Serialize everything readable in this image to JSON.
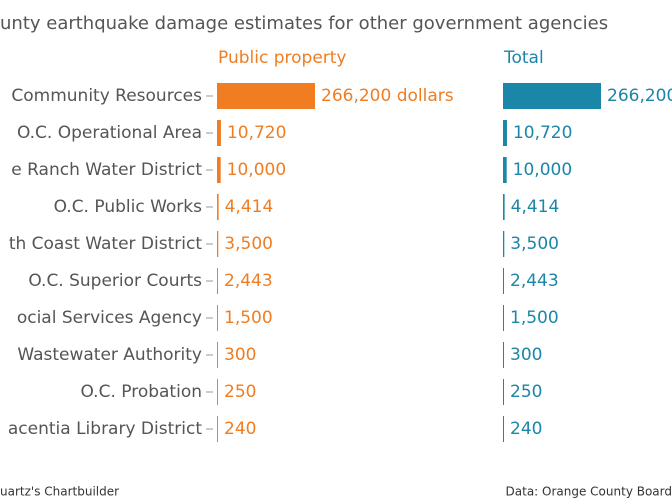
{
  "chart_data": {
    "type": "bar",
    "orientation": "horizontal",
    "title": "unty earthquake damage estimates for other government agencies",
    "categories": [
      "Community Resources",
      "O.C. Operational Area",
      "e Ranch Water District",
      "O.C. Public Works",
      "th Coast Water District",
      "O.C. Superior Courts",
      "ocial Services Agency",
      "Wastewater Authority",
      "O.C. Probation",
      "acentia Library District"
    ],
    "series": [
      {
        "name": "Public property",
        "color": "#f07d22",
        "values": [
          266200,
          10720,
          10000,
          4414,
          3500,
          2443,
          1500,
          300,
          250,
          240
        ],
        "value_labels": [
          "266,200 dollars",
          "10,720",
          "10,000",
          "4,414",
          "3,500",
          "2,443",
          "1,500",
          "300",
          "250",
          "240"
        ]
      },
      {
        "name": "Total",
        "color": "#1a86a8",
        "values": [
          266200,
          10720,
          10000,
          4414,
          3500,
          2443,
          1500,
          300,
          250,
          240
        ],
        "value_labels": [
          "266,200",
          "10,720",
          "10,000",
          "4,414",
          "3,500",
          "2,443",
          "1,500",
          "300",
          "250",
          "240"
        ]
      }
    ],
    "credit": "uartz's Chartbuilder",
    "source": "Data: Orange County Board"
  }
}
